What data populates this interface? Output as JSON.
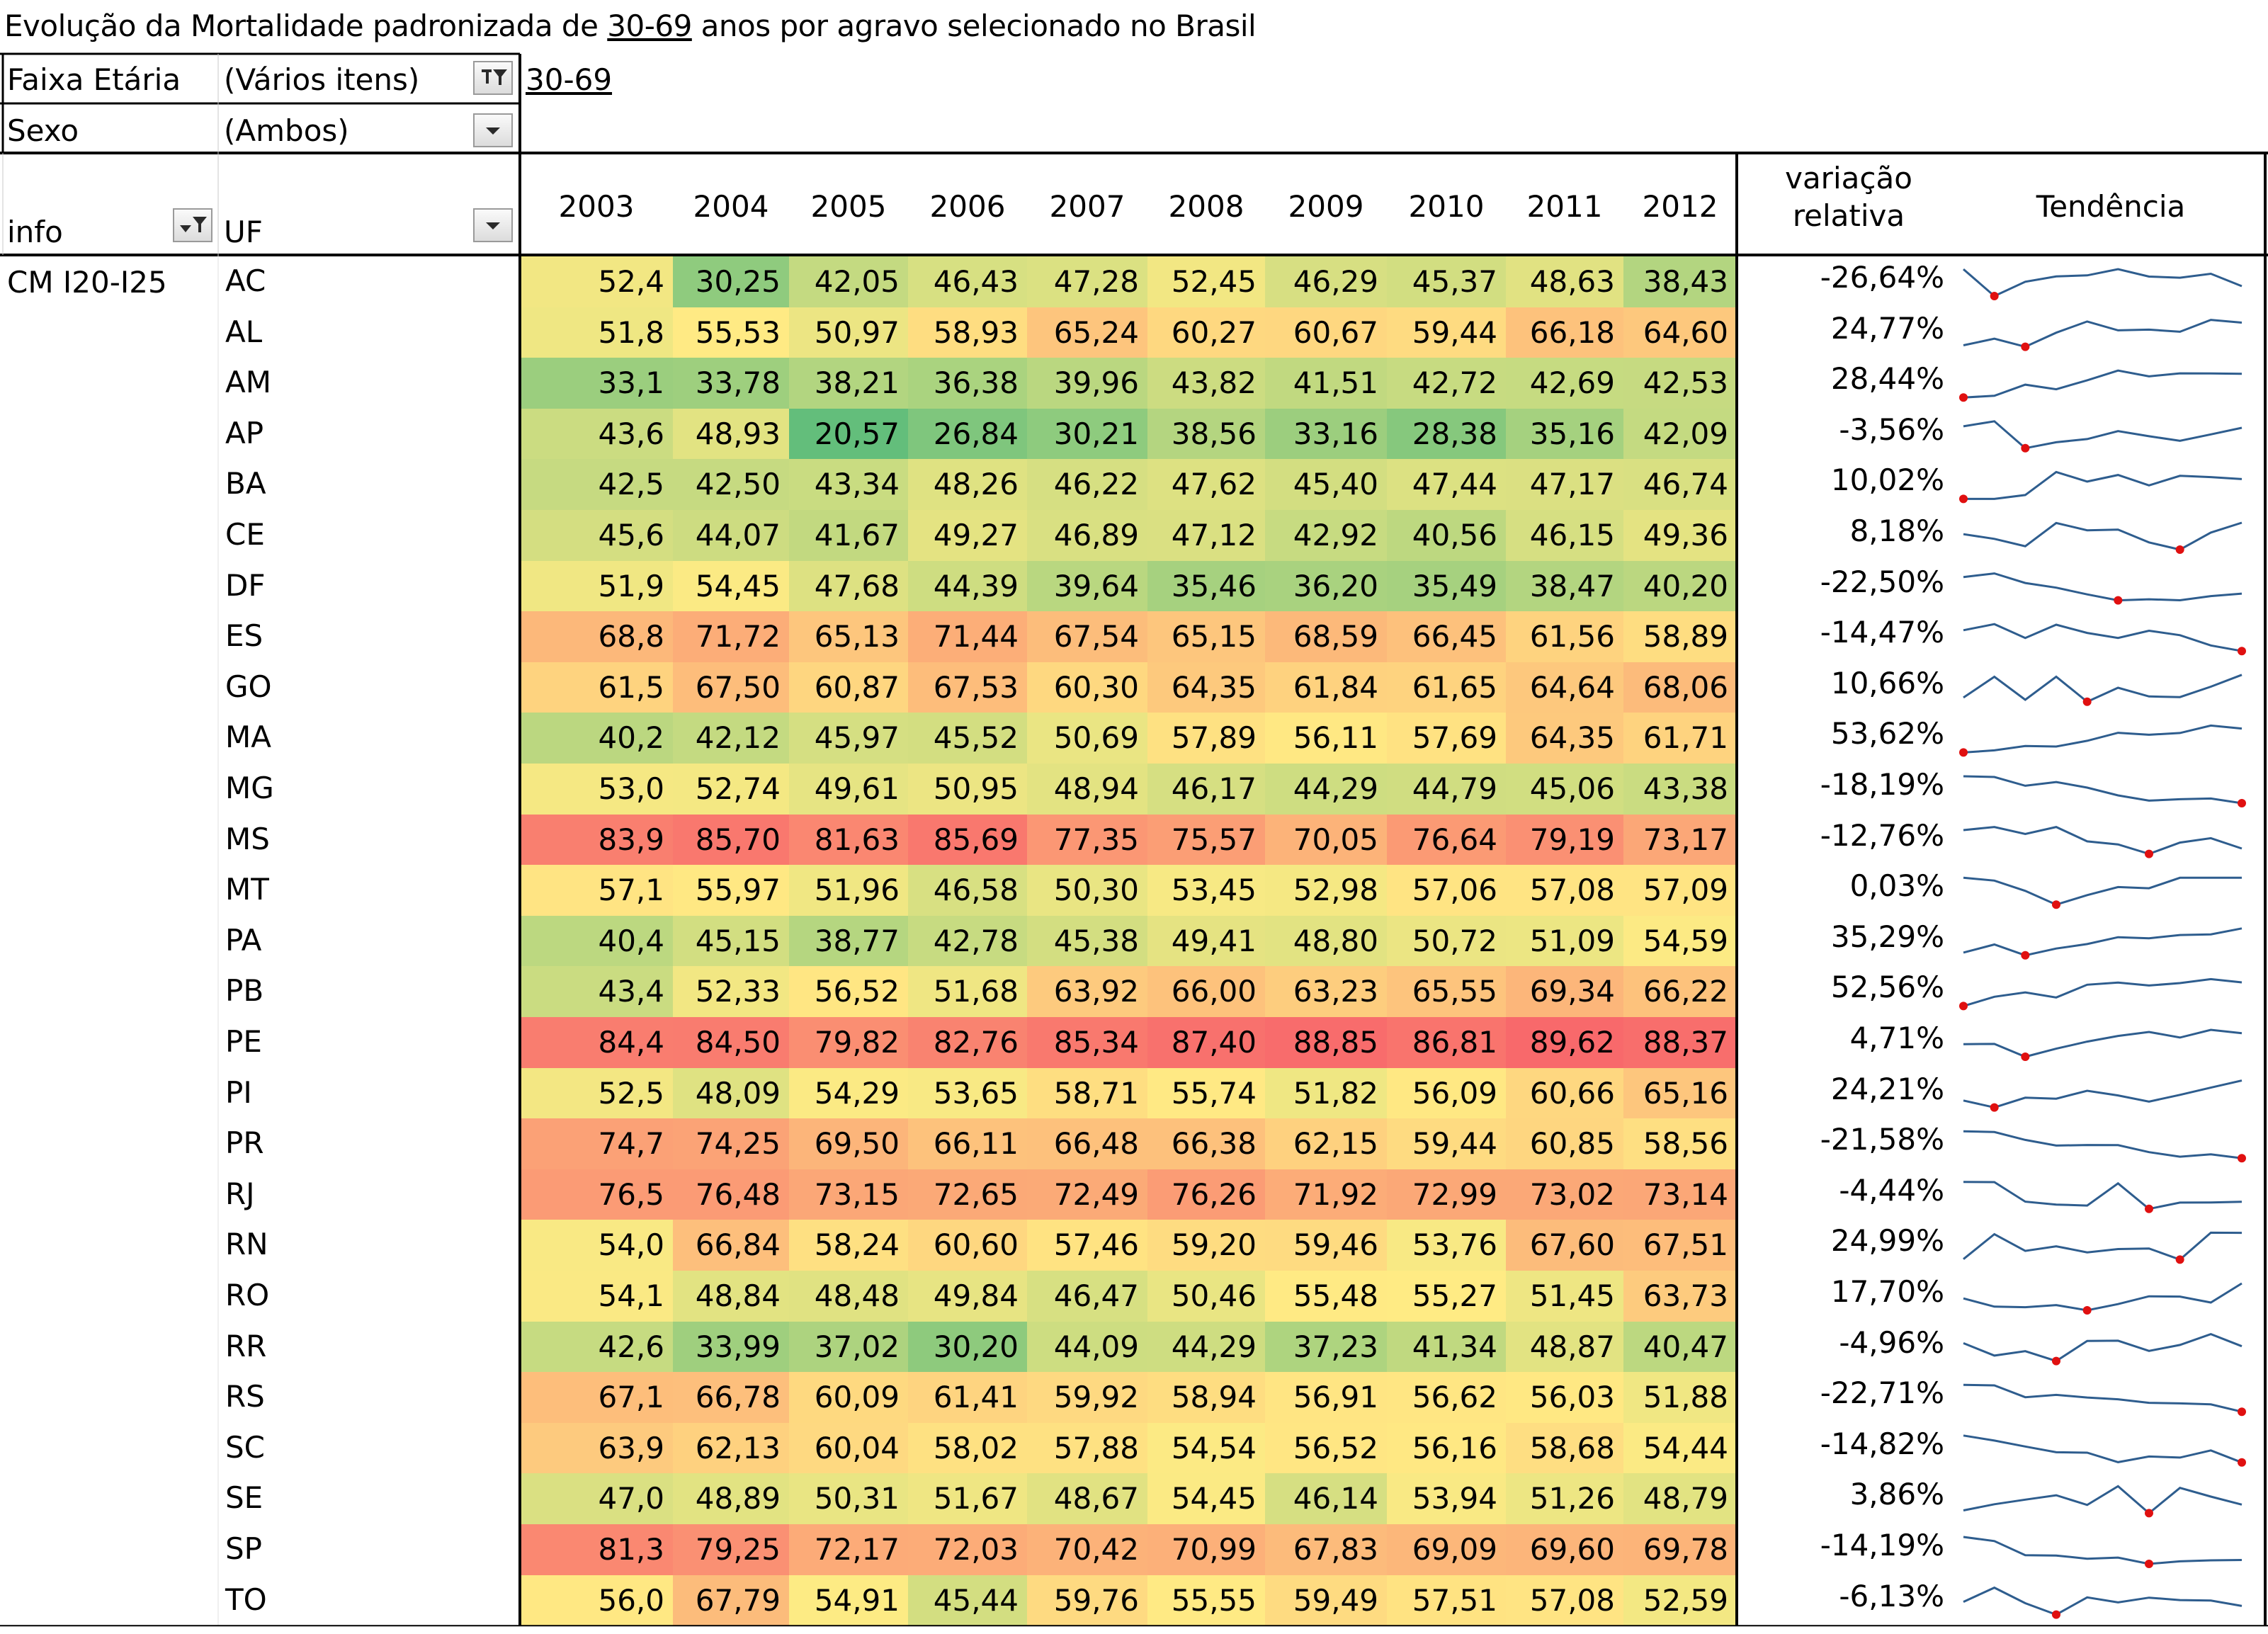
{
  "title": {
    "part1": "Evolução da Mortalidade padronizada de ",
    "age_link": "30-69",
    "part2": " anos por agravo selecionado no Brasil"
  },
  "filters": {
    "faixa_label": "Faixa Etária",
    "faixa_value": "(Vários itens)",
    "faixa_selected": "30-69",
    "sexo_label": "Sexo",
    "sexo_value": "(Ambos)"
  },
  "table": {
    "info_header": "info",
    "uf_header": "UF",
    "info_value": "CM I20-I25",
    "variation_header_line1": "variação",
    "variation_header_line2": "relativa",
    "trend_header": "Tendência",
    "years": [
      "2003",
      "2004",
      "2005",
      "2006",
      "2007",
      "2008",
      "2009",
      "2010",
      "2011",
      "2012"
    ],
    "rows": [
      {
        "uf": "AC",
        "values": [
          "52,4",
          "30,25",
          "42,05",
          "46,43",
          "47,28",
          "52,45",
          "46,29",
          "45,37",
          "48,63",
          "38,43"
        ],
        "variation": "-26,64%"
      },
      {
        "uf": "AL",
        "values": [
          "51,8",
          "55,53",
          "50,97",
          "58,93",
          "65,24",
          "60,27",
          "60,67",
          "59,44",
          "66,18",
          "64,60"
        ],
        "variation": "24,77%"
      },
      {
        "uf": "AM",
        "values": [
          "33,1",
          "33,78",
          "38,21",
          "36,38",
          "39,96",
          "43,82",
          "41,51",
          "42,72",
          "42,69",
          "42,53"
        ],
        "variation": "28,44%"
      },
      {
        "uf": "AP",
        "values": [
          "43,6",
          "48,93",
          "20,57",
          "26,84",
          "30,21",
          "38,56",
          "33,16",
          "28,38",
          "35,16",
          "42,09"
        ],
        "variation": "-3,56%"
      },
      {
        "uf": "BA",
        "values": [
          "42,5",
          "42,50",
          "43,34",
          "48,26",
          "46,22",
          "47,62",
          "45,40",
          "47,44",
          "47,17",
          "46,74"
        ],
        "variation": "10,02%"
      },
      {
        "uf": "CE",
        "values": [
          "45,6",
          "44,07",
          "41,67",
          "49,27",
          "46,89",
          "47,12",
          "42,92",
          "40,56",
          "46,15",
          "49,36"
        ],
        "variation": "8,18%"
      },
      {
        "uf": "DF",
        "values": [
          "51,9",
          "54,45",
          "47,68",
          "44,39",
          "39,64",
          "35,46",
          "36,20",
          "35,49",
          "38,47",
          "40,20"
        ],
        "variation": "-22,50%"
      },
      {
        "uf": "ES",
        "values": [
          "68,8",
          "71,72",
          "65,13",
          "71,44",
          "67,54",
          "65,15",
          "68,59",
          "66,45",
          "61,56",
          "58,89"
        ],
        "variation": "-14,47%"
      },
      {
        "uf": "GO",
        "values": [
          "61,5",
          "67,50",
          "60,87",
          "67,53",
          "60,30",
          "64,35",
          "61,84",
          "61,65",
          "64,64",
          "68,06"
        ],
        "variation": "10,66%"
      },
      {
        "uf": "MA",
        "values": [
          "40,2",
          "42,12",
          "45,97",
          "45,52",
          "50,69",
          "57,89",
          "56,11",
          "57,69",
          "64,35",
          "61,71"
        ],
        "variation": "53,62%"
      },
      {
        "uf": "MG",
        "values": [
          "53,0",
          "52,74",
          "49,61",
          "50,95",
          "48,94",
          "46,17",
          "44,29",
          "44,79",
          "45,06",
          "43,38"
        ],
        "variation": "-18,19%"
      },
      {
        "uf": "MS",
        "values": [
          "83,9",
          "85,70",
          "81,63",
          "85,69",
          "77,35",
          "75,57",
          "70,05",
          "76,64",
          "79,19",
          "73,17"
        ],
        "variation": "-12,76%"
      },
      {
        "uf": "MT",
        "values": [
          "57,1",
          "55,97",
          "51,96",
          "46,58",
          "50,30",
          "53,45",
          "52,98",
          "57,06",
          "57,08",
          "57,09"
        ],
        "variation": "0,03%"
      },
      {
        "uf": "PA",
        "values": [
          "40,4",
          "45,15",
          "38,77",
          "42,78",
          "45,38",
          "49,41",
          "48,80",
          "50,72",
          "51,09",
          "54,59"
        ],
        "variation": "35,29%"
      },
      {
        "uf": "PB",
        "values": [
          "43,4",
          "52,33",
          "56,52",
          "51,68",
          "63,92",
          "66,00",
          "63,23",
          "65,55",
          "69,34",
          "66,22"
        ],
        "variation": "52,56%"
      },
      {
        "uf": "PE",
        "values": [
          "84,4",
          "84,50",
          "79,82",
          "82,76",
          "85,34",
          "87,40",
          "88,85",
          "86,81",
          "89,62",
          "88,37"
        ],
        "variation": "4,71%"
      },
      {
        "uf": "PI",
        "values": [
          "52,5",
          "48,09",
          "54,29",
          "53,65",
          "58,71",
          "55,74",
          "51,82",
          "56,09",
          "60,66",
          "65,16"
        ],
        "variation": "24,21%"
      },
      {
        "uf": "PR",
        "values": [
          "74,7",
          "74,25",
          "69,50",
          "66,11",
          "66,48",
          "66,38",
          "62,15",
          "59,44",
          "60,85",
          "58,56"
        ],
        "variation": "-21,58%"
      },
      {
        "uf": "RJ",
        "values": [
          "76,5",
          "76,48",
          "73,15",
          "72,65",
          "72,49",
          "76,26",
          "71,92",
          "72,99",
          "73,02",
          "73,14"
        ],
        "variation": "-4,44%"
      },
      {
        "uf": "RN",
        "values": [
          "54,0",
          "66,84",
          "58,24",
          "60,60",
          "57,46",
          "59,20",
          "59,46",
          "53,76",
          "67,60",
          "67,51"
        ],
        "variation": "24,99%"
      },
      {
        "uf": "RO",
        "values": [
          "54,1",
          "48,84",
          "48,48",
          "49,84",
          "46,47",
          "50,46",
          "55,48",
          "55,27",
          "51,45",
          "63,73"
        ],
        "variation": "17,70%"
      },
      {
        "uf": "RR",
        "values": [
          "42,6",
          "33,99",
          "37,02",
          "30,20",
          "44,09",
          "44,29",
          "37,23",
          "41,34",
          "48,87",
          "40,47"
        ],
        "variation": "-4,96%"
      },
      {
        "uf": "RS",
        "values": [
          "67,1",
          "66,78",
          "60,09",
          "61,41",
          "59,92",
          "58,94",
          "56,91",
          "56,62",
          "56,03",
          "51,88"
        ],
        "variation": "-22,71%"
      },
      {
        "uf": "SC",
        "values": [
          "63,9",
          "62,13",
          "60,04",
          "58,02",
          "57,88",
          "54,54",
          "56,52",
          "56,16",
          "58,68",
          "54,44"
        ],
        "variation": "-14,82%"
      },
      {
        "uf": "SE",
        "values": [
          "47,0",
          "48,89",
          "50,31",
          "51,67",
          "48,67",
          "54,45",
          "46,14",
          "53,94",
          "51,26",
          "48,79"
        ],
        "variation": "3,86%"
      },
      {
        "uf": "SP",
        "values": [
          "81,3",
          "79,25",
          "72,17",
          "72,03",
          "70,42",
          "70,99",
          "67,83",
          "69,09",
          "69,60",
          "69,78"
        ],
        "variation": "-14,19%"
      },
      {
        "uf": "TO",
        "values": [
          "56,0",
          "67,79",
          "54,91",
          "45,44",
          "59,76",
          "55,55",
          "59,49",
          "57,51",
          "57,08",
          "52,59"
        ],
        "variation": "-6,13%"
      }
    ]
  },
  "colors": {
    "scale_low": "#63be7b",
    "scale_mid": "#ffeb84",
    "scale_high": "#f8696b",
    "sparkline": "#2e5d8e",
    "sparkline_min": "#e01010"
  },
  "icons": {
    "faixa_dropdown": "filter-dropdown-icon",
    "sexo_dropdown": "dropdown-arrow-icon",
    "info_dropdown": "filter-dropdown-icon",
    "uf_dropdown": "dropdown-arrow-icon"
  }
}
